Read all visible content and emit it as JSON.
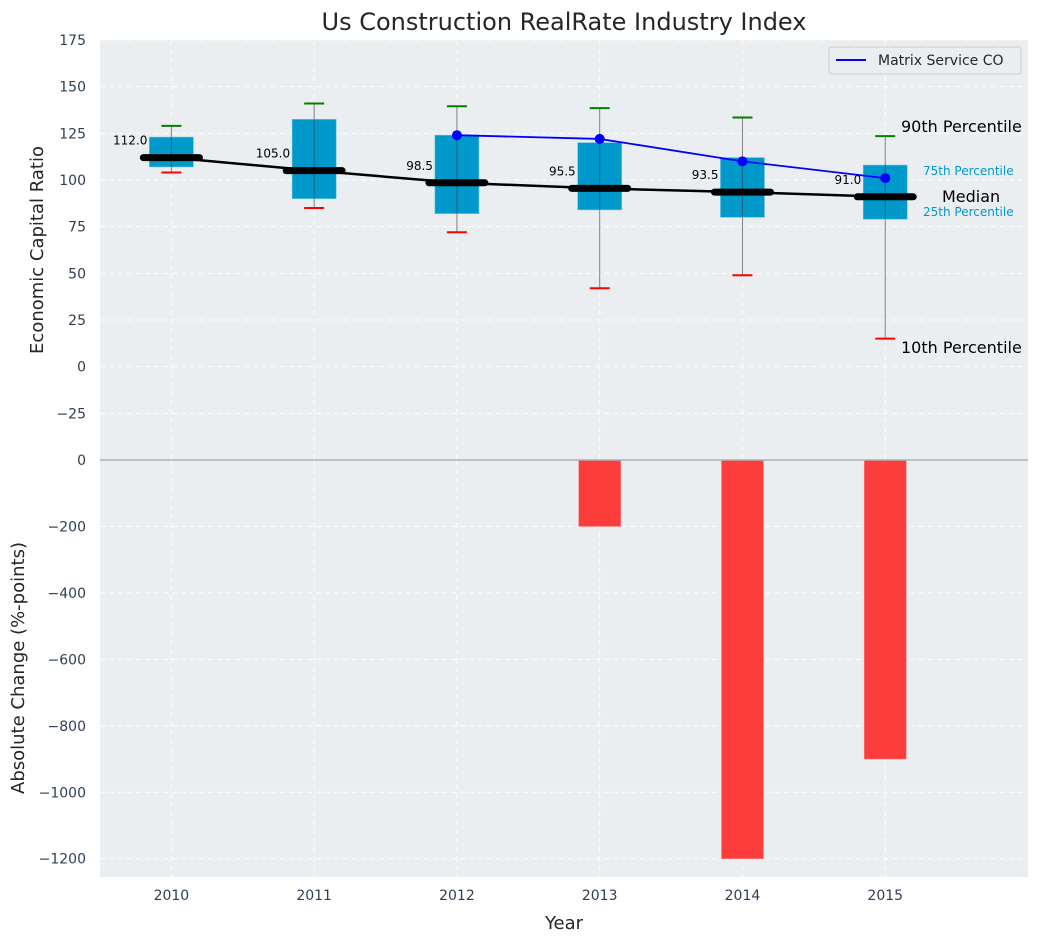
{
  "chart_data": {
    "type": "bar",
    "title": "Us Construction RealRate Industry Index",
    "xlabel": "Year",
    "categories": [
      "2010",
      "2011",
      "2012",
      "2013",
      "2014",
      "2015"
    ],
    "x": [
      2010,
      2011,
      2012,
      2013,
      2014,
      2015
    ],
    "xlim": [
      2009.5,
      2016
    ],
    "grid": true,
    "panels": [
      {
        "name": "top",
        "type": "boxplot",
        "ylabel": "Economic Capital Ratio",
        "ylim": [
          -50,
          175
        ],
        "yticks": [
          175,
          150,
          125,
          100,
          75,
          50,
          25,
          0,
          -25
        ],
        "ytick_labels": [
          "175",
          "150",
          "125",
          "100",
          "75",
          "50",
          "25",
          "0",
          "−25"
        ],
        "series": [
          {
            "name": "p90",
            "label": "90th Percentile",
            "values": [
              129,
              141,
              139.5,
              138.5,
              133.5,
              123.5
            ],
            "color": "#008000"
          },
          {
            "name": "p75",
            "label": "75th Percentile",
            "values": [
              123,
              132.5,
              124,
              120,
              112,
              108
            ],
            "color": "#0099cc"
          },
          {
            "name": "median",
            "label": "Median",
            "values": [
              112.0,
              105.0,
              98.5,
              95.5,
              93.5,
              91.0
            ],
            "color": "#000000"
          },
          {
            "name": "p25",
            "label": "25th Percentile",
            "values": [
              107,
              90,
              82,
              84,
              80,
              79
            ],
            "color": "#0099cc"
          },
          {
            "name": "p10",
            "label": "10th Percentile",
            "values": [
              104,
              85,
              72,
              42,
              49,
              15
            ],
            "color": "#ff0000"
          },
          {
            "name": "Matrix Service CO",
            "x": [
              2012,
              2013,
              2014,
              2015
            ],
            "values": [
              124,
              122,
              110,
              101
            ],
            "color": "#0000ff"
          }
        ],
        "median_labels": [
          "112.0",
          "105.0",
          "98.5",
          "95.5",
          "93.5",
          "91.0"
        ],
        "legend": {
          "entries": [
            "Matrix Service CO"
          ],
          "placement": "top-right"
        },
        "annotations": {
          "p90": "90th Percentile",
          "p75": "75th Percentile",
          "median": "Median",
          "p25": "25th Percentile",
          "p10": "10th Percentile"
        }
      },
      {
        "name": "bottom",
        "type": "bar",
        "ylabel": "Absolute Change (%-points)",
        "ylim": [
          -1255,
          0
        ],
        "yticks": [
          0,
          -200,
          -400,
          -600,
          -800,
          -1000,
          -1200
        ],
        "ytick_labels": [
          "0",
          "−200",
          "−400",
          "−600",
          "−800",
          "−1000",
          "−1200"
        ],
        "series": [
          {
            "name": "Absolute Change",
            "values": [
              0,
              0,
              0,
              -200,
              -1200,
              -900
            ],
            "color": "#ff3333"
          }
        ]
      }
    ]
  }
}
